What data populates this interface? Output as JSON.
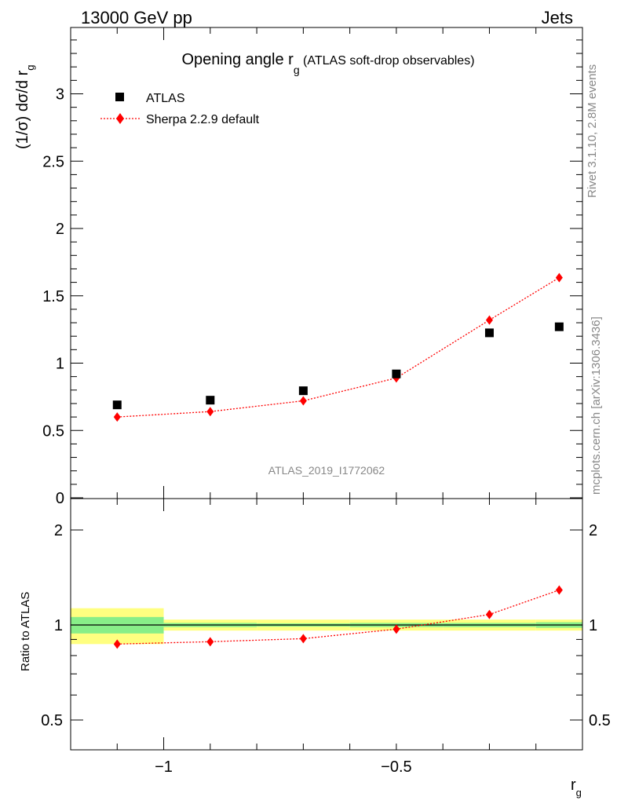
{
  "header": {
    "left": "13000 GeV pp",
    "right": "Jets"
  },
  "side_text": {
    "rivet": "Rivet 3.1.10,  2.8M events",
    "mcplots": "mcplots.cern.ch [arXiv:1306.3436]"
  },
  "chart_data": [
    {
      "type": "scatter",
      "title": "Opening angle r",
      "title_sub": "g",
      "title_suffix": " (ATLAS soft-drop observables)",
      "ylabel": "(1/σ) dσ/d r",
      "ylabel_sub": "g",
      "watermark": "ATLAS_2019_I1772062",
      "xlim": [
        -1.2,
        -0.1
      ],
      "ylim": [
        0,
        3.5
      ],
      "y_ticks": [
        0,
        0.5,
        1,
        1.5,
        2,
        2.5,
        3
      ],
      "y_tick_labels": [
        "0",
        "0.5",
        "1",
        "1.5",
        "2",
        "2.5",
        "3"
      ],
      "bin_edges": [
        -1.2,
        -1.0,
        -0.8,
        -0.6,
        -0.4,
        -0.2,
        -0.1
      ],
      "series": [
        {
          "name": "ATLAS",
          "marker": "square",
          "color": "#000000",
          "x": [
            -1.1,
            -0.9,
            -0.7,
            -0.5,
            -0.3,
            -0.15
          ],
          "y": [
            0.69,
            0.725,
            0.795,
            0.92,
            1.225,
            1.27
          ]
        },
        {
          "name": "Sherpa 2.2.9 default",
          "marker": "diamond",
          "line": "dotted",
          "color": "#ff0000",
          "x": [
            -1.1,
            -0.9,
            -0.7,
            -0.5,
            -0.3,
            -0.15
          ],
          "y": [
            0.6,
            0.64,
            0.72,
            0.89,
            1.32,
            1.635
          ]
        }
      ]
    },
    {
      "type": "scatter",
      "ylabel": "Ratio to ATLAS",
      "xlabel": "r",
      "xlabel_sub": "g",
      "xlim": [
        -1.2,
        -0.1
      ],
      "y_scale": "log",
      "ylim": [
        0.39,
        2.35
      ],
      "x_ticks": [
        -1.0,
        -0.5
      ],
      "x_tick_labels": [
        "−1",
        "−0.5"
      ],
      "y_tick_labels_left": [
        "0.5",
        "1",
        "2"
      ],
      "y_tick_values": [
        0.5,
        1,
        2
      ],
      "y_tick_labels_right": [
        "0.5",
        "1",
        "2"
      ],
      "bands": {
        "stat_color": "#88ee88",
        "total_color": "#ffff80",
        "bin_edges": [
          -1.2,
          -1.0,
          -0.8,
          -0.6,
          -0.4,
          -0.2,
          -0.1
        ],
        "total_half_width": [
          0.13,
          0.04,
          0.04,
          0.04,
          0.04,
          0.04
        ],
        "stat_half_width": [
          0.06,
          0.015,
          0.012,
          0.015,
          0.015,
          0.02
        ]
      },
      "series": [
        {
          "name": "Sherpa 2.2.9 default",
          "marker": "diamond",
          "line": "dotted",
          "color": "#ff0000",
          "x": [
            -1.1,
            -0.9,
            -0.7,
            -0.5,
            -0.3,
            -0.15
          ],
          "y": [
            0.87,
            0.885,
            0.905,
            0.97,
            1.08,
            1.29
          ]
        }
      ]
    }
  ]
}
